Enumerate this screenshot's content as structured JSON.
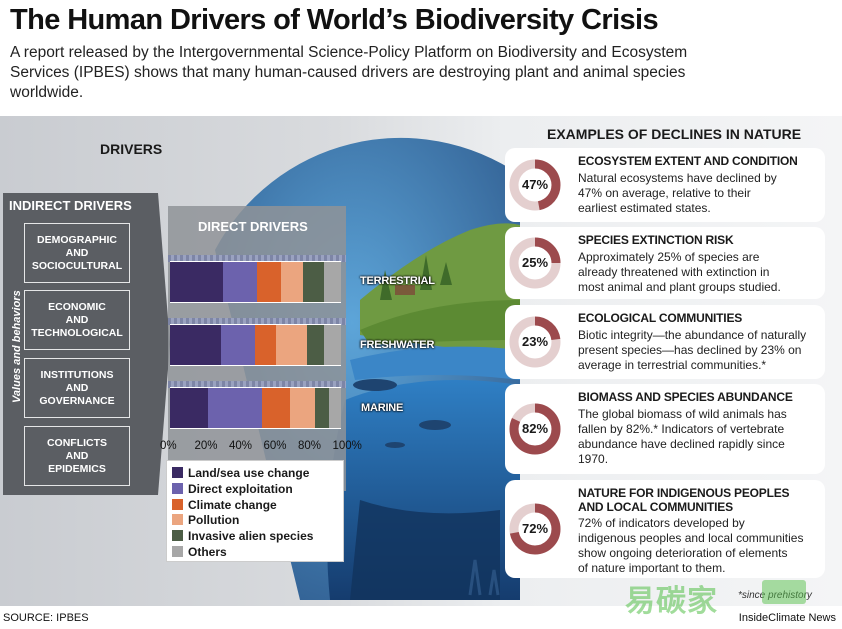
{
  "title": "The Human Drivers of World’s Biodiversity Crisis",
  "subtitle": "A report released by the Intergovernmental Science-Policy Platform on Biodiversity and Ecosystem Services (IPBES) shows that many human-caused drivers are destroying plant and animal species worldwide.",
  "drivers_heading": "DRIVERS",
  "indirect": {
    "title": "INDIRECT DRIVERS",
    "side_label": "Values and behaviors",
    "items": [
      [
        "DEMOGRAPHIC",
        "AND",
        "SOCIOCULTURAL"
      ],
      [
        "ECONOMIC",
        "AND",
        "TECHNOLOGICAL"
      ],
      [
        "INSTITUTIONS",
        "AND",
        "GOVERNANCE"
      ],
      [
        "CONFLICTS",
        "AND",
        "EPIDEMICS"
      ]
    ]
  },
  "direct_title": "DIRECT DRIVERS",
  "colors": {
    "land": "#3a2a63",
    "exploitation": "#6c62ad",
    "climate": "#d9622b",
    "pollution": "#eba57f",
    "invasive": "#4c5d45",
    "others": "#a7a7a7"
  },
  "chart_data": {
    "type": "bar",
    "orientation": "horizontal",
    "stacked": true,
    "categories": [
      "TERRESTRIAL",
      "FRESHWATER",
      "MARINE"
    ],
    "series": [
      {
        "name": "Land/sea use change",
        "values": [
          31,
          30,
          22
        ],
        "color": "#3a2a63"
      },
      {
        "name": "Direct exploitation",
        "values": [
          20,
          20,
          32
        ],
        "color": "#6c62ad"
      },
      {
        "name": "Climate change",
        "values": [
          14,
          12,
          16
        ],
        "color": "#d9622b"
      },
      {
        "name": "Pollution",
        "values": [
          13,
          18,
          15
        ],
        "color": "#eba57f"
      },
      {
        "name": "Invasive alien species",
        "values": [
          12,
          10,
          8
        ],
        "color": "#4c5d45"
      },
      {
        "name": "Others",
        "values": [
          10,
          10,
          7
        ],
        "color": "#a7a7a7"
      }
    ],
    "xlim": [
      0,
      100
    ],
    "x_ticks": [
      "0%",
      "20%",
      "40%",
      "60%",
      "80%",
      "100%"
    ],
    "legend_position": "bottom"
  },
  "examples": {
    "heading": "EXAMPLES OF DECLINES IN NATURE",
    "items": [
      {
        "value": 47,
        "label": "47%",
        "title": "ECOSYSTEM EXTENT AND CONDITION",
        "lines": [
          "Natural ecosystems have declined by",
          "47% on average, relative to their",
          "earliest estimated states."
        ]
      },
      {
        "value": 25,
        "label": "25%",
        "title": "SPECIES EXTINCTION RISK",
        "lines": [
          "Approximately 25% of species are",
          "already threatened with extinction in",
          "most animal and plant groups studied."
        ]
      },
      {
        "value": 23,
        "label": "23%",
        "title": "ECOLOGICAL COMMUNITIES",
        "lines": [
          "Biotic integrity—the abundance of naturally",
          "present species—has declined by 23% on",
          "average in terrestrial communities.*"
        ]
      },
      {
        "value": 82,
        "label": "82%",
        "title": "BIOMASS AND SPECIES ABUNDANCE",
        "lines": [
          "The global biomass of wild animals has",
          "fallen by 82%.* Indicators of vertebrate",
          "abundance have declined rapidly since",
          "1970."
        ]
      },
      {
        "value": 72,
        "label": "72%",
        "title": "NATURE FOR INDIGENOUS PEOPLES",
        "title2": "AND LOCAL COMMUNITIES",
        "lines": [
          "72% of indicators developed by",
          "indigenous peoples and local communities",
          "show ongoing deterioration of elements",
          "of nature important to them."
        ]
      }
    ]
  },
  "note": "*since prehistory",
  "source": "SOURCE: IPBES",
  "credit": "InsideClimate News",
  "watermark": "易碳家"
}
